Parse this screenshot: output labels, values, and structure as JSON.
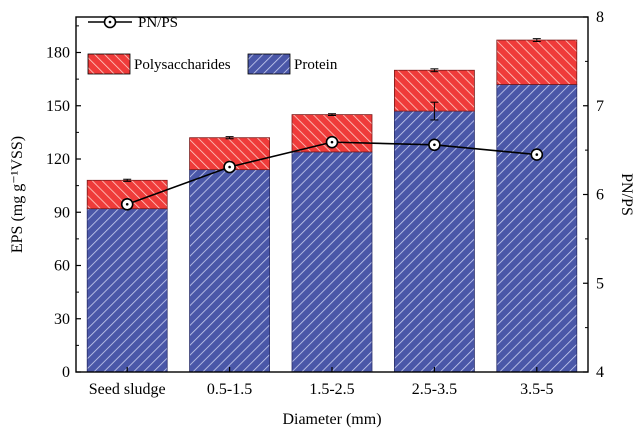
{
  "chart_data": {
    "type": "bar",
    "stacked": true,
    "categories": [
      "Seed sludge",
      "0.5-1.5",
      "1.5-2.5",
      "2.5-3.5",
      "3.5-5"
    ],
    "series": [
      {
        "name": "Protein",
        "values": [
          92,
          114,
          124,
          147,
          162
        ],
        "error": [
          0,
          0,
          0,
          5,
          0
        ],
        "color": "#4a57a8",
        "pattern": "diagonal-hatch"
      },
      {
        "name": "Polysaccharides",
        "values": [
          16,
          18,
          21,
          23,
          25
        ],
        "error": [
          0.6,
          0.6,
          0.5,
          0.8,
          0.8
        ],
        "color": "#e8393a",
        "pattern": "diagonal-hatch"
      }
    ],
    "line_series": {
      "name": "PN/PS",
      "axis": "right",
      "values": [
        5.89,
        6.31,
        6.59,
        6.56,
        6.45
      ],
      "color": "#000000",
      "marker": "open-circle-dot"
    },
    "xlabel": "Diameter (mm)",
    "ylabel": "EPS (mg g⁻¹VSS)",
    "ylabel_right": "PN/PS",
    "ylim": [
      0,
      200
    ],
    "yticks": [
      0,
      30,
      60,
      90,
      120,
      150,
      180
    ],
    "ylim_right": [
      4,
      8
    ],
    "yticks_right": [
      4,
      5,
      6,
      7,
      8
    ],
    "legend_placement": "top-left",
    "grid": false
  }
}
